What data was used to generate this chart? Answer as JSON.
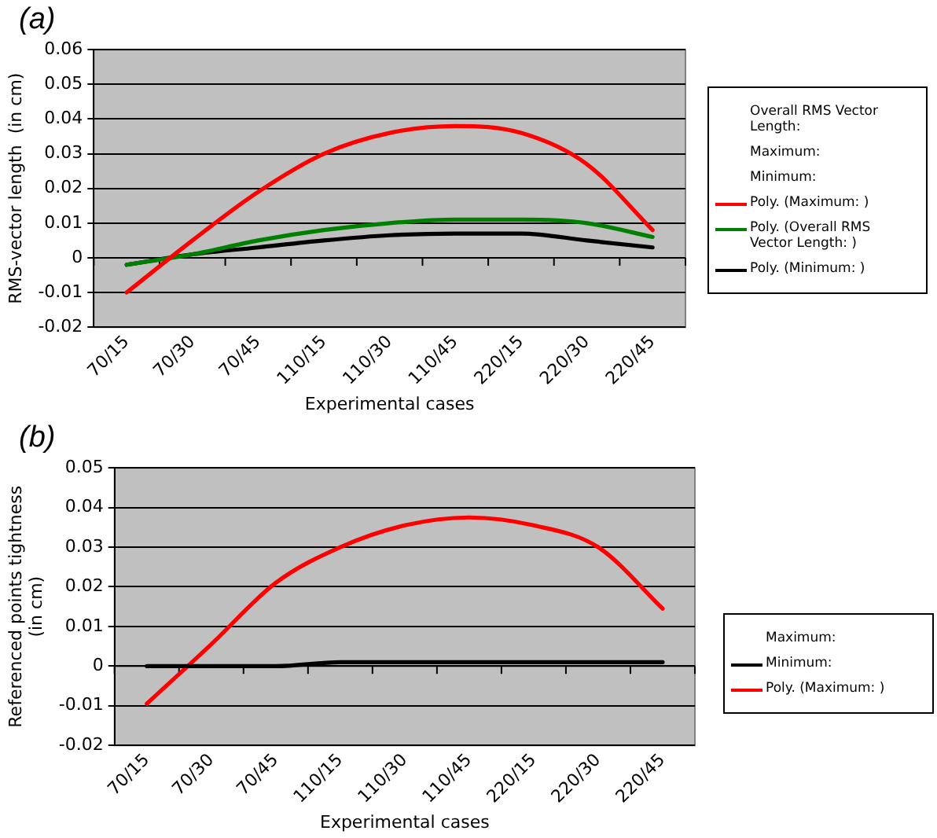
{
  "chart_data": [
    {
      "type": "line",
      "title": "(a)",
      "xlabel": "Experimental cases",
      "ylabel": "RMS-vector length  (in cm)",
      "categories": [
        "70/15",
        "70/30",
        "70/45",
        "110/15",
        "110/30",
        "110/45",
        "220/15",
        "220/30",
        "220/45"
      ],
      "series": [
        {
          "name": "Poly. (Maximum: )",
          "color": "#ff0000",
          "values": [
            -0.01,
            0.005,
            0.019,
            0.03,
            0.036,
            0.038,
            0.036,
            0.027,
            0.008
          ]
        },
        {
          "name": "Poly. (Overall RMS Vector Length: )",
          "color": "#008000",
          "values": [
            -0.002,
            0.001,
            0.005,
            0.008,
            0.01,
            0.011,
            0.011,
            0.01,
            0.006
          ]
        },
        {
          "name": "Poly. (Minimum: )",
          "color": "#000000",
          "values": [
            -0.002,
            0.001,
            0.003,
            0.005,
            0.0065,
            0.007,
            0.007,
            0.005,
            0.003
          ]
        }
      ],
      "annotations": [
        "Overall RMS Vector Length:",
        "Maximum:",
        "Minimum:"
      ],
      "ylim": [
        -0.02,
        0.06
      ],
      "yticks": [
        -0.02,
        -0.01,
        0,
        0.01,
        0.02,
        0.03,
        0.04,
        0.05,
        0.06
      ],
      "grid": "y",
      "legend": "right",
      "marker": "none",
      "line_style": "solid"
    },
    {
      "type": "line",
      "title": "(b)",
      "xlabel": "Experimental cases",
      "ylabel": "Referenced points tightness\n(in cm)",
      "categories": [
        "70/15",
        "70/30",
        "70/45",
        "110/15",
        "110/30",
        "110/45",
        "220/15",
        "220/30",
        "220/45"
      ],
      "series": [
        {
          "name": "Minimum:",
          "color": "#000000",
          "values": [
            0,
            0,
            0,
            0.001,
            0.001,
            0.001,
            0.001,
            0.001,
            0.001
          ]
        },
        {
          "name": "Poly. (Maximum: )",
          "color": "#ff0000",
          "values": [
            -0.0095,
            0.0055,
            0.021,
            0.03,
            0.0355,
            0.0375,
            0.0355,
            0.03,
            0.0145
          ]
        }
      ],
      "annotations": [
        "Maximum:"
      ],
      "ylim": [
        -0.02,
        0.05
      ],
      "yticks": [
        -0.02,
        -0.01,
        0,
        0.01,
        0.02,
        0.03,
        0.04,
        0.05
      ],
      "grid": "y",
      "legend": "right",
      "marker": "none",
      "line_style": "solid"
    }
  ]
}
